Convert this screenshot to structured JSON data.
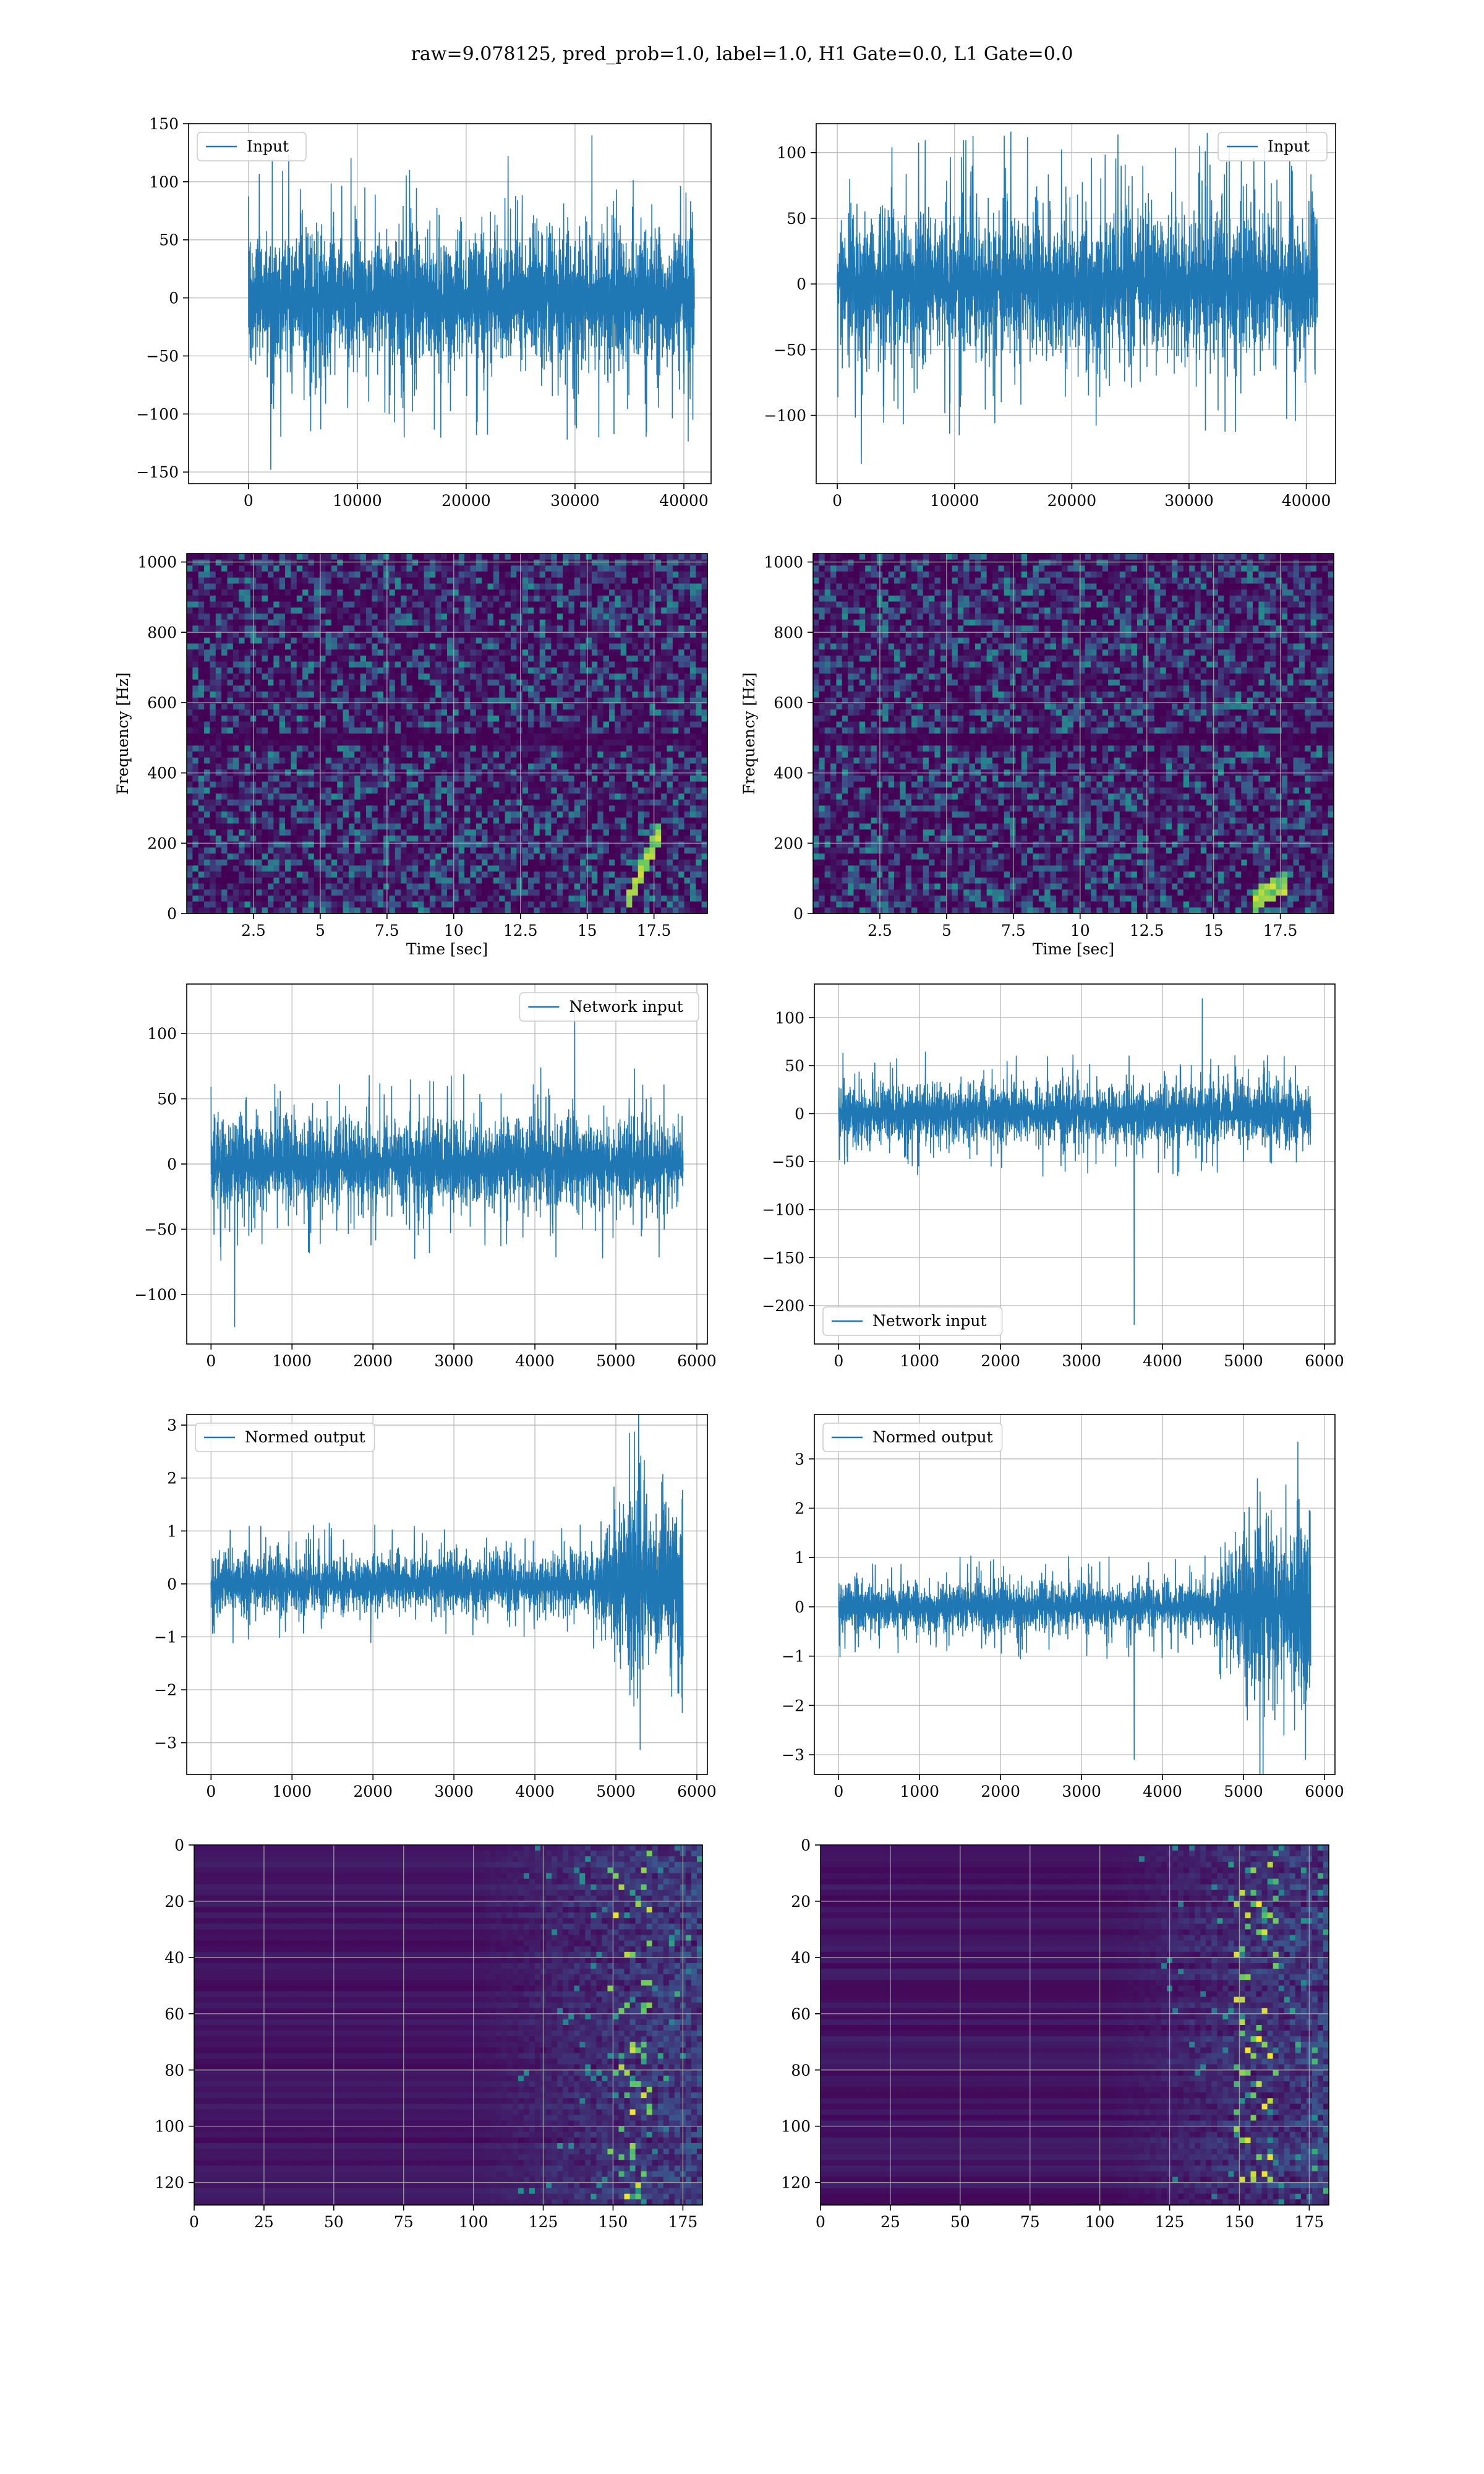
{
  "figure": {
    "title": "raw=9.078125, pred_prob=1.0, label=1.0, H1 Gate=0.0, L1 Gate=0.0"
  },
  "colors": {
    "line": "#1f77b4",
    "grid": "#b0b0b0",
    "viridis_low": "#440154",
    "viridis_mid": "#21918c",
    "viridis_high": "#fde725"
  },
  "chart_data": [
    {
      "id": "h1-input",
      "type": "line",
      "signal": "white-noise",
      "legend": [
        "Input"
      ],
      "legend_loc": "upper left",
      "xlim": [
        -5500,
        42500
      ],
      "ylim": [
        -160,
        150
      ],
      "xticks": [
        0,
        10000,
        20000,
        30000,
        40000
      ],
      "yticks": [
        -150,
        -100,
        -50,
        0,
        50,
        100,
        150
      ],
      "x_range": [
        0,
        40960
      ],
      "amplitude": 75,
      "spike_max": 140,
      "spike_min": -148,
      "grid": true
    },
    {
      "id": "l1-input",
      "type": "line",
      "signal": "white-noise",
      "legend": [
        "Input"
      ],
      "legend_loc": "upper right",
      "xlim": [
        -1800,
        42500
      ],
      "ylim": [
        -152,
        122
      ],
      "xticks": [
        0,
        10000,
        20000,
        30000,
        40000
      ],
      "yticks": [
        -100,
        -50,
        0,
        50,
        100
      ],
      "x_range": [
        0,
        40960
      ],
      "amplitude": 72,
      "spike_max": 115,
      "spike_min": -137,
      "grid": true
    },
    {
      "id": "h1-spectrogram",
      "type": "heatmap",
      "xlabel": "Time [sec]",
      "ylabel": "Frequency [Hz]",
      "xlim": [
        0,
        19.5
      ],
      "ylim": [
        0,
        1024
      ],
      "xticks": [
        2.5,
        5.0,
        7.5,
        10.0,
        12.5,
        15.0,
        17.5
      ],
      "yticks": [
        0,
        200,
        400,
        600,
        800,
        1000
      ],
      "notch_hz": 500,
      "chirp": {
        "t_end": 17.7,
        "f_low": 30,
        "f_high": 250
      },
      "grid": true,
      "colormap": "viridis"
    },
    {
      "id": "l1-spectrogram",
      "type": "heatmap",
      "xlabel": "Time [sec]",
      "ylabel": "Frequency [Hz]",
      "xlim": [
        0,
        19.5
      ],
      "ylim": [
        0,
        1024
      ],
      "xticks": [
        2.5,
        5.0,
        7.5,
        10.0,
        12.5,
        15.0,
        17.5
      ],
      "yticks": [
        0,
        200,
        400,
        600,
        800,
        1000
      ],
      "notch_hz": 500,
      "chirp": {
        "t_end": 17.6,
        "f_low": 30,
        "f_high": 90
      },
      "grid": true,
      "colormap": "viridis"
    },
    {
      "id": "h1-network-input",
      "type": "line",
      "signal": "white-noise",
      "legend": [
        "Network input"
      ],
      "legend_loc": "upper right",
      "xlim": [
        -300,
        6130
      ],
      "ylim": [
        -138,
        138
      ],
      "xticks": [
        0,
        1000,
        2000,
        3000,
        4000,
        5000,
        6000
      ],
      "yticks": [
        -100,
        -50,
        0,
        50,
        100
      ],
      "x_range": [
        0,
        5830
      ],
      "amplitude": 45,
      "spike_max": 128,
      "spike_min": -125,
      "grid": true
    },
    {
      "id": "l1-network-input",
      "type": "line",
      "signal": "white-noise",
      "legend": [
        "Network input"
      ],
      "legend_loc": "lower left",
      "xlim": [
        -300,
        6130
      ],
      "ylim": [
        -240,
        135
      ],
      "xticks": [
        0,
        1000,
        2000,
        3000,
        4000,
        5000,
        6000
      ],
      "yticks": [
        -200,
        -150,
        -100,
        -50,
        0,
        50,
        100
      ],
      "x_range": [
        0,
        5830
      ],
      "amplitude": 40,
      "spike_max": 120,
      "spike_min": -220,
      "spike_at": 3650,
      "grid": true
    },
    {
      "id": "h1-normed-output",
      "type": "line",
      "signal": "burst",
      "legend": [
        "Normed output"
      ],
      "legend_loc": "upper left",
      "xlim": [
        -300,
        6130
      ],
      "ylim": [
        -3.6,
        3.2
      ],
      "xticks": [
        0,
        1000,
        2000,
        3000,
        4000,
        5000,
        6000
      ],
      "yticks": [
        -3,
        -2,
        -1,
        0,
        1,
        2,
        3
      ],
      "x_range": [
        0,
        5830
      ],
      "amplitude": 0.7,
      "burst_start": 4700,
      "burst_amp": 2.6,
      "grid": true
    },
    {
      "id": "l1-normed-output",
      "type": "line",
      "signal": "burst",
      "legend": [
        "Normed output"
      ],
      "legend_loc": "upper left",
      "xlim": [
        -300,
        6130
      ],
      "ylim": [
        -3.4,
        3.9
      ],
      "xticks": [
        0,
        1000,
        2000,
        3000,
        4000,
        5000,
        6000
      ],
      "yticks": [
        -3,
        -2,
        -1,
        0,
        1,
        2,
        3
      ],
      "x_range": [
        0,
        5830
      ],
      "amplitude": 0.65,
      "burst_start": 4650,
      "burst_amp": 2.9,
      "spike_at": 3650,
      "spike_min": -3.1,
      "grid": true
    },
    {
      "id": "h1-feature-map",
      "type": "heatmap",
      "xlim": [
        0,
        182
      ],
      "ylim": [
        128,
        0
      ],
      "xticks": [
        0,
        25,
        50,
        75,
        100,
        125,
        150,
        175
      ],
      "yticks": [
        0,
        20,
        40,
        60,
        80,
        100,
        120
      ],
      "onset_col": 100,
      "grid": true,
      "colormap": "viridis"
    },
    {
      "id": "l1-feature-map",
      "type": "heatmap",
      "xlim": [
        0,
        182
      ],
      "ylim": [
        128,
        0
      ],
      "xticks": [
        0,
        25,
        50,
        75,
        100,
        125,
        150,
        175
      ],
      "yticks": [
        0,
        20,
        40,
        60,
        80,
        100,
        120
      ],
      "onset_col": 105,
      "grid": true,
      "colormap": "viridis"
    }
  ]
}
